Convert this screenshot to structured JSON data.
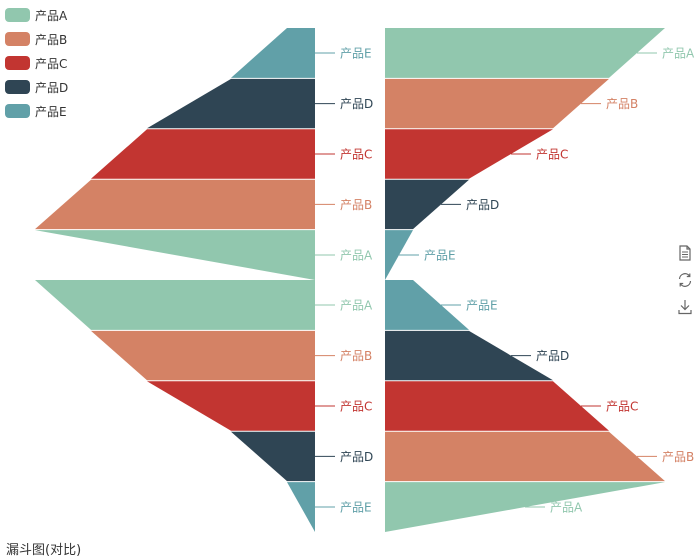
{
  "chart_data": {
    "type": "funnel",
    "title": "漏斗图(对比)",
    "legend": [
      "产品A",
      "产品B",
      "产品C",
      "产品D",
      "产品E"
    ],
    "colors": [
      "#91c7ae",
      "#d48265",
      "#c23531",
      "#2f4554",
      "#61a0a8"
    ],
    "series": [
      {
        "position": "left-top",
        "sort": "ascending",
        "orient": "right-aligned",
        "label_position": "right-side",
        "data": [
          {
            "name": "产品A",
            "value": 100
          },
          {
            "name": "产品B",
            "value": 80
          },
          {
            "name": "产品C",
            "value": 60
          },
          {
            "name": "产品D",
            "value": 30
          },
          {
            "name": "产品E",
            "value": 10
          }
        ]
      },
      {
        "position": "left-bottom",
        "sort": "descending",
        "orient": "right-aligned",
        "label_position": "right-side",
        "data": [
          {
            "name": "产品A",
            "value": 100
          },
          {
            "name": "产品B",
            "value": 80
          },
          {
            "name": "产品C",
            "value": 60
          },
          {
            "name": "产品D",
            "value": 30
          },
          {
            "name": "产品E",
            "value": 10
          }
        ]
      },
      {
        "position": "right-top",
        "sort": "descending",
        "orient": "left-aligned",
        "label_position": "right",
        "data": [
          {
            "name": "产品A",
            "value": 100
          },
          {
            "name": "产品B",
            "value": 80
          },
          {
            "name": "产品C",
            "value": 60
          },
          {
            "name": "产品D",
            "value": 30
          },
          {
            "name": "产品E",
            "value": 10
          }
        ]
      },
      {
        "position": "right-bottom",
        "sort": "ascending",
        "orient": "left-aligned",
        "label_position": "right",
        "data": [
          {
            "name": "产品A",
            "value": 100
          },
          {
            "name": "产品B",
            "value": 80
          },
          {
            "name": "产品C",
            "value": 60
          },
          {
            "name": "产品D",
            "value": 30
          },
          {
            "name": "产品E",
            "value": 10
          }
        ]
      }
    ]
  },
  "toolbox": [
    "data-view-icon",
    "restore-icon",
    "save-image-icon"
  ]
}
